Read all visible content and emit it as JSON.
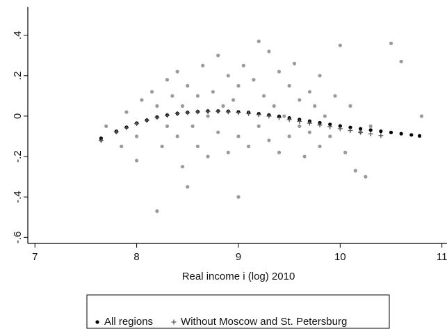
{
  "chart_data": {
    "type": "scatter",
    "x_label": "Real income i (log) 2010",
    "xlim": [
      6.93,
      11.05
    ],
    "xticks": [
      7,
      8,
      9,
      10,
      11
    ],
    "ylim": [
      -0.63,
      0.54
    ],
    "yticks": [
      {
        "value": -0.6,
        "label": "-.6"
      },
      {
        "value": -0.4,
        "label": "-.4"
      },
      {
        "value": -0.2,
        "label": "-.2"
      },
      {
        "value": 0,
        "label": "0"
      },
      {
        "value": 0.2,
        "label": ".2"
      },
      {
        "value": 0.4,
        "label": ".4"
      }
    ],
    "grid": false,
    "legend": "bottom",
    "series": [
      {
        "color": "#9a9a9a",
        "marker": "dot",
        "x": [
          7.65,
          7.7,
          7.8,
          7.85,
          7.9,
          8.0,
          8.0,
          8.05,
          8.1,
          8.15,
          8.2,
          8.2,
          8.25,
          8.3,
          8.3,
          8.35,
          8.4,
          8.4,
          8.45,
          8.45,
          8.5,
          8.5,
          8.55,
          8.6,
          8.6,
          8.65,
          8.7,
          8.7,
          8.75,
          8.8,
          8.8,
          8.85,
          8.9,
          8.9,
          8.95,
          9.0,
          9.0,
          9.0,
          9.05,
          9.1,
          9.1,
          9.15,
          9.2,
          9.2,
          9.25,
          9.3,
          9.3,
          9.35,
          9.4,
          9.4,
          9.45,
          9.5,
          9.5,
          9.55,
          9.6,
          9.6,
          9.65,
          9.7,
          9.7,
          9.75,
          9.8,
          9.8,
          9.85,
          9.9,
          9.95,
          10.0,
          10.0,
          10.05,
          10.1,
          10.15,
          10.2,
          10.25,
          10.3,
          10.5,
          10.6,
          10.8
        ],
        "values": [
          -0.12,
          -0.05,
          -0.08,
          -0.15,
          0.02,
          -0.1,
          -0.22,
          0.08,
          -0.02,
          0.12,
          -0.47,
          0.05,
          -0.15,
          0.18,
          -0.05,
          0.1,
          -0.1,
          0.22,
          -0.25,
          0.05,
          -0.35,
          0.15,
          -0.05,
          0.1,
          -0.15,
          0.25,
          0.0,
          -0.2,
          0.12,
          0.3,
          -0.08,
          0.05,
          -0.18,
          0.2,
          0.08,
          -0.4,
          0.15,
          -0.1,
          0.25,
          0.02,
          -0.15,
          0.18,
          0.37,
          -0.05,
          0.1,
          0.32,
          -0.12,
          0.05,
          0.22,
          -0.18,
          0.0,
          0.15,
          -0.1,
          0.26,
          -0.05,
          0.08,
          -0.2,
          0.12,
          -0.08,
          0.05,
          0.2,
          -0.15,
          0.0,
          -0.1,
          0.1,
          0.35,
          -0.05,
          -0.18,
          0.05,
          -0.27,
          -0.08,
          -0.3,
          -0.05,
          0.36,
          0.27,
          0.0
        ]
      },
      {
        "name": "All regions",
        "color": "#000000",
        "marker": "dot",
        "x": [
          7.65,
          7.8,
          7.9,
          8.0,
          8.1,
          8.2,
          8.3,
          8.4,
          8.5,
          8.6,
          8.7,
          8.8,
          8.9,
          9.0,
          9.1,
          9.2,
          9.3,
          9.4,
          9.5,
          9.6,
          9.7,
          9.8,
          9.9,
          10.0,
          10.1,
          10.2,
          10.3,
          10.4,
          10.5,
          10.6,
          10.7,
          10.78
        ],
        "values": [
          -0.11,
          -0.075,
          -0.055,
          -0.035,
          -0.02,
          -0.005,
          0.005,
          0.013,
          0.018,
          0.022,
          0.025,
          0.025,
          0.024,
          0.021,
          0.017,
          0.012,
          0.006,
          -0.001,
          -0.009,
          -0.017,
          -0.025,
          -0.033,
          -0.041,
          -0.049,
          -0.056,
          -0.063,
          -0.069,
          -0.075,
          -0.081,
          -0.087,
          -0.093,
          -0.098
        ]
      },
      {
        "name": "Without Moscow and St. Petersburg",
        "color": "#555555",
        "marker": "plus",
        "x": [
          7.65,
          7.8,
          7.9,
          8.0,
          8.1,
          8.2,
          8.3,
          8.4,
          8.5,
          8.6,
          8.7,
          8.8,
          8.9,
          9.0,
          9.1,
          9.2,
          9.3,
          9.4,
          9.5,
          9.6,
          9.7,
          9.8,
          9.9,
          10.0,
          10.1,
          10.2,
          10.3,
          10.4
        ],
        "values": [
          -0.12,
          -0.078,
          -0.058,
          -0.037,
          -0.021,
          -0.006,
          0.004,
          0.012,
          0.017,
          0.021,
          0.023,
          0.023,
          0.021,
          0.018,
          0.013,
          0.007,
          0.0,
          -0.008,
          -0.017,
          -0.026,
          -0.035,
          -0.044,
          -0.053,
          -0.062,
          -0.071,
          -0.08,
          -0.088,
          -0.096
        ]
      }
    ]
  }
}
